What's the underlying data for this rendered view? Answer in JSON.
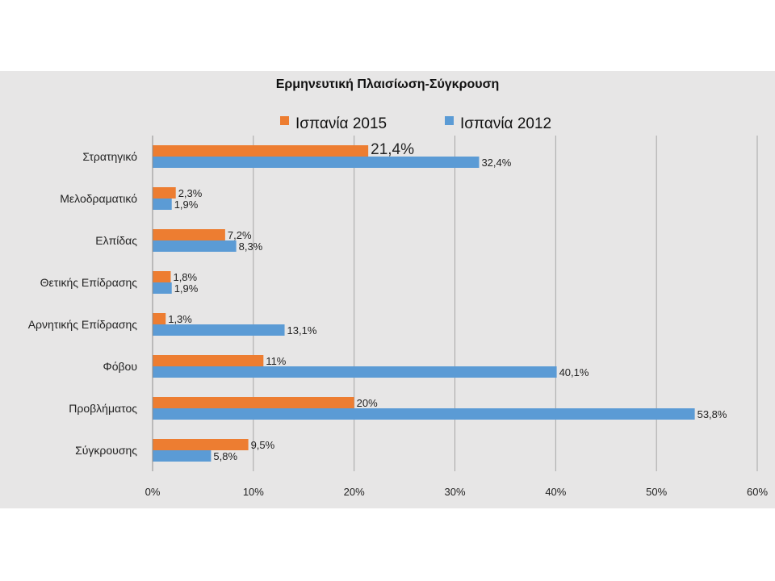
{
  "chart_data": {
    "type": "bar",
    "orientation": "horizontal",
    "title": "Ερμηνευτική Πλαισίωση-Σύγκρουση",
    "categories": [
      "Στρατηγικό",
      "Μελοδραματικό",
      "Ελπίδας",
      "Θετικής Επίδρασης",
      "Αρνητικής Επίδρασης",
      "Φόβου",
      "Προβλήματος",
      "Σύγκρουσης"
    ],
    "series": [
      {
        "name": "Ισπανία 2015",
        "color": "#ed7d31",
        "values": [
          21.4,
          2.3,
          7.2,
          1.8,
          1.3,
          11,
          20,
          9.5
        ],
        "labels": [
          "21,4%",
          "2,3%",
          "7,2%",
          "1,8%",
          "1,3%",
          "11%",
          "20%",
          "9,5%"
        ]
      },
      {
        "name": "Ισπανία 2012",
        "color": "#5b9bd5",
        "values": [
          32.4,
          1.9,
          8.3,
          1.9,
          13.1,
          40.1,
          53.8,
          5.8
        ],
        "labels": [
          "32,4%",
          "1,9%",
          "8,3%",
          "1,9%",
          "13,1%",
          "40,1%",
          "53,8%",
          "5,8%"
        ]
      }
    ],
    "xlim": [
      0,
      60
    ],
    "xticks": [
      "0%",
      "10%",
      "20%",
      "30%",
      "40%",
      "50%",
      "60%"
    ],
    "grid": true,
    "legend_position": "top"
  }
}
